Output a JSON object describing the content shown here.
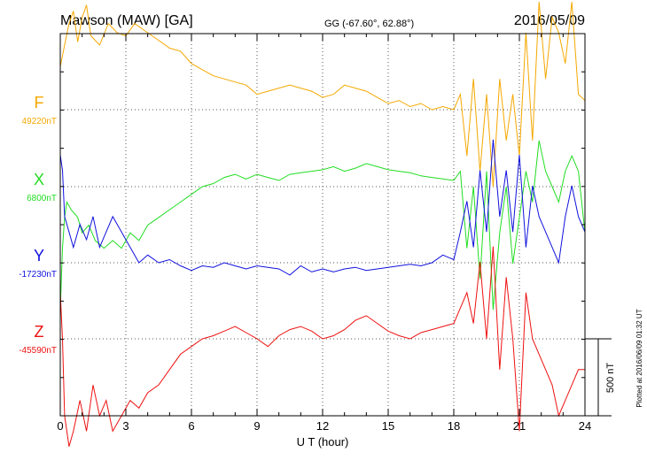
{
  "header": {
    "station": "Mawson (MAW)  [GA]",
    "coords": "GG (-67.60°,  62.88°)",
    "date": "2016/05/09"
  },
  "footer_note": "Plotted at 2016/06/09 01:32 UT",
  "scale_label": "500 nT",
  "chart_data": {
    "type": "line",
    "xlabel": "U T (hour)",
    "xlim": [
      0,
      24
    ],
    "xticks": [
      "0",
      "3",
      "6",
      "9",
      "12",
      "15",
      "18",
      "21",
      "24"
    ],
    "grid": true,
    "scale_nT": 500,
    "series": [
      {
        "name": "F",
        "baseline_label": "49220nT",
        "color": "#F5A800",
        "x": [
          0,
          0.2,
          0.4,
          0.6,
          0.8,
          1.0,
          1.2,
          1.4,
          1.8,
          2.2,
          2.6,
          3.0,
          3.4,
          3.8,
          4.2,
          4.6,
          5.0,
          5.5,
          6.0,
          6.5,
          7.0,
          7.5,
          8.0,
          8.5,
          9.0,
          9.5,
          10.0,
          10.5,
          11.0,
          11.5,
          12.0,
          12.5,
          13.0,
          13.5,
          14.0,
          14.5,
          15.0,
          15.5,
          16.0,
          16.5,
          17.0,
          17.5,
          18.0,
          18.3,
          18.6,
          18.9,
          19.2,
          19.5,
          19.8,
          20.1,
          20.4,
          20.7,
          21.0,
          21.3,
          21.6,
          21.9,
          22.2,
          22.5,
          22.8,
          23.1,
          23.4,
          23.7,
          24.0
        ],
        "y": [
          280,
          420,
          560,
          640,
          440,
          600,
          680,
          480,
          420,
          560,
          500,
          480,
          560,
          520,
          480,
          440,
          400,
          380,
          300,
          260,
          220,
          200,
          180,
          160,
          100,
          120,
          140,
          160,
          140,
          120,
          80,
          100,
          160,
          140,
          120,
          80,
          40,
          60,
          20,
          40,
          0,
          20,
          0,
          100,
          -300,
          200,
          -400,
          100,
          -500,
          200,
          -200,
          100,
          -300,
          500,
          -200,
          700,
          200,
          600,
          500,
          300,
          700,
          100,
          60
        ]
      },
      {
        "name": "X",
        "baseline_label": "6800nT",
        "color": "#22DD22",
        "x": [
          0,
          0.1,
          0.2,
          0.3,
          0.5,
          0.8,
          1.0,
          1.3,
          1.6,
          2.0,
          2.4,
          2.8,
          3.2,
          3.6,
          4.0,
          4.5,
          5.0,
          5.5,
          6.0,
          6.5,
          7.0,
          7.5,
          8.0,
          8.5,
          9.0,
          9.5,
          10.0,
          10.5,
          11.0,
          11.5,
          12.0,
          12.5,
          13.0,
          13.5,
          14.0,
          14.5,
          15.0,
          15.5,
          16.0,
          16.5,
          17.0,
          17.5,
          18.0,
          18.3,
          18.6,
          18.9,
          19.2,
          19.5,
          19.8,
          20.1,
          20.4,
          20.7,
          21.0,
          21.3,
          21.6,
          21.9,
          22.2,
          22.5,
          22.8,
          23.1,
          23.4,
          23.7,
          24.0
        ],
        "y": [
          -800,
          -400,
          -200,
          -100,
          -150,
          -200,
          -300,
          -250,
          -350,
          -400,
          -350,
          -400,
          -300,
          -350,
          -250,
          -200,
          -150,
          -100,
          -50,
          0,
          20,
          60,
          80,
          50,
          80,
          60,
          40,
          80,
          90,
          100,
          110,
          130,
          100,
          120,
          150,
          130,
          110,
          100,
          90,
          70,
          60,
          50,
          40,
          100,
          -400,
          0,
          -600,
          100,
          -800,
          -300,
          0,
          -500,
          -200,
          100,
          -100,
          300,
          100,
          0,
          -100,
          100,
          200,
          100,
          -300
        ]
      },
      {
        "name": "Y",
        "baseline_label": "-17230nT",
        "color": "#1111DD",
        "x": [
          0,
          0.1,
          0.2,
          0.4,
          0.6,
          0.9,
          1.2,
          1.5,
          1.8,
          2.1,
          2.4,
          2.8,
          3.2,
          3.6,
          4.0,
          4.5,
          5.0,
          5.5,
          6.0,
          6.5,
          7.0,
          7.5,
          8.0,
          8.5,
          9.0,
          9.5,
          10.0,
          10.5,
          11.0,
          11.5,
          12.0,
          12.5,
          13.0,
          13.5,
          14.0,
          14.5,
          15.0,
          15.5,
          16.0,
          16.5,
          17.0,
          17.5,
          18.0,
          18.3,
          18.6,
          18.9,
          19.2,
          19.5,
          19.8,
          20.1,
          20.4,
          20.7,
          21.0,
          21.3,
          21.6,
          21.9,
          22.2,
          22.5,
          22.8,
          23.1,
          23.4,
          23.7,
          24.0
        ],
        "y": [
          700,
          600,
          300,
          200,
          100,
          250,
          150,
          300,
          100,
          200,
          300,
          200,
          100,
          0,
          50,
          0,
          20,
          -20,
          -50,
          -20,
          -30,
          0,
          -20,
          -40,
          -20,
          -30,
          -40,
          -80,
          -20,
          -60,
          -40,
          -60,
          -40,
          -30,
          -50,
          -40,
          -30,
          -20,
          -10,
          -20,
          0,
          50,
          20,
          200,
          400,
          100,
          600,
          200,
          800,
          300,
          600,
          200,
          700,
          100,
          500,
          300,
          200,
          100,
          0,
          300,
          500,
          300,
          200
        ]
      },
      {
        "name": "Z",
        "baseline_label": "-45590nT",
        "color": "#EE1111",
        "x": [
          0,
          0.1,
          0.2,
          0.4,
          0.6,
          0.9,
          1.2,
          1.5,
          1.8,
          2.1,
          2.4,
          2.8,
          3.2,
          3.6,
          4.0,
          4.5,
          5.0,
          5.5,
          6.0,
          6.5,
          7.0,
          7.5,
          8.0,
          8.5,
          9.0,
          9.5,
          10.0,
          10.5,
          11.0,
          11.5,
          12.0,
          12.5,
          13.0,
          13.5,
          14.0,
          14.5,
          15.0,
          15.5,
          16.0,
          16.5,
          17.0,
          17.5,
          18.0,
          18.3,
          18.6,
          18.9,
          19.2,
          19.5,
          19.8,
          20.1,
          20.4,
          20.7,
          21.0,
          21.3,
          21.6,
          21.9,
          22.2,
          22.5,
          22.8,
          23.1,
          23.4,
          23.7,
          24.0
        ],
        "y": [
          300,
          0,
          -500,
          -700,
          -600,
          -400,
          -600,
          -300,
          -500,
          -400,
          -600,
          -500,
          -400,
          -450,
          -350,
          -300,
          -200,
          -100,
          -50,
          0,
          20,
          50,
          80,
          40,
          0,
          -50,
          20,
          60,
          80,
          50,
          0,
          20,
          60,
          120,
          150,
          100,
          50,
          20,
          0,
          40,
          60,
          80,
          100,
          200,
          300,
          100,
          500,
          0,
          600,
          -200,
          400,
          0,
          -600,
          300,
          0,
          -100,
          -200,
          -300,
          -500,
          -400,
          -300,
          -200,
          -200
        ]
      }
    ]
  }
}
